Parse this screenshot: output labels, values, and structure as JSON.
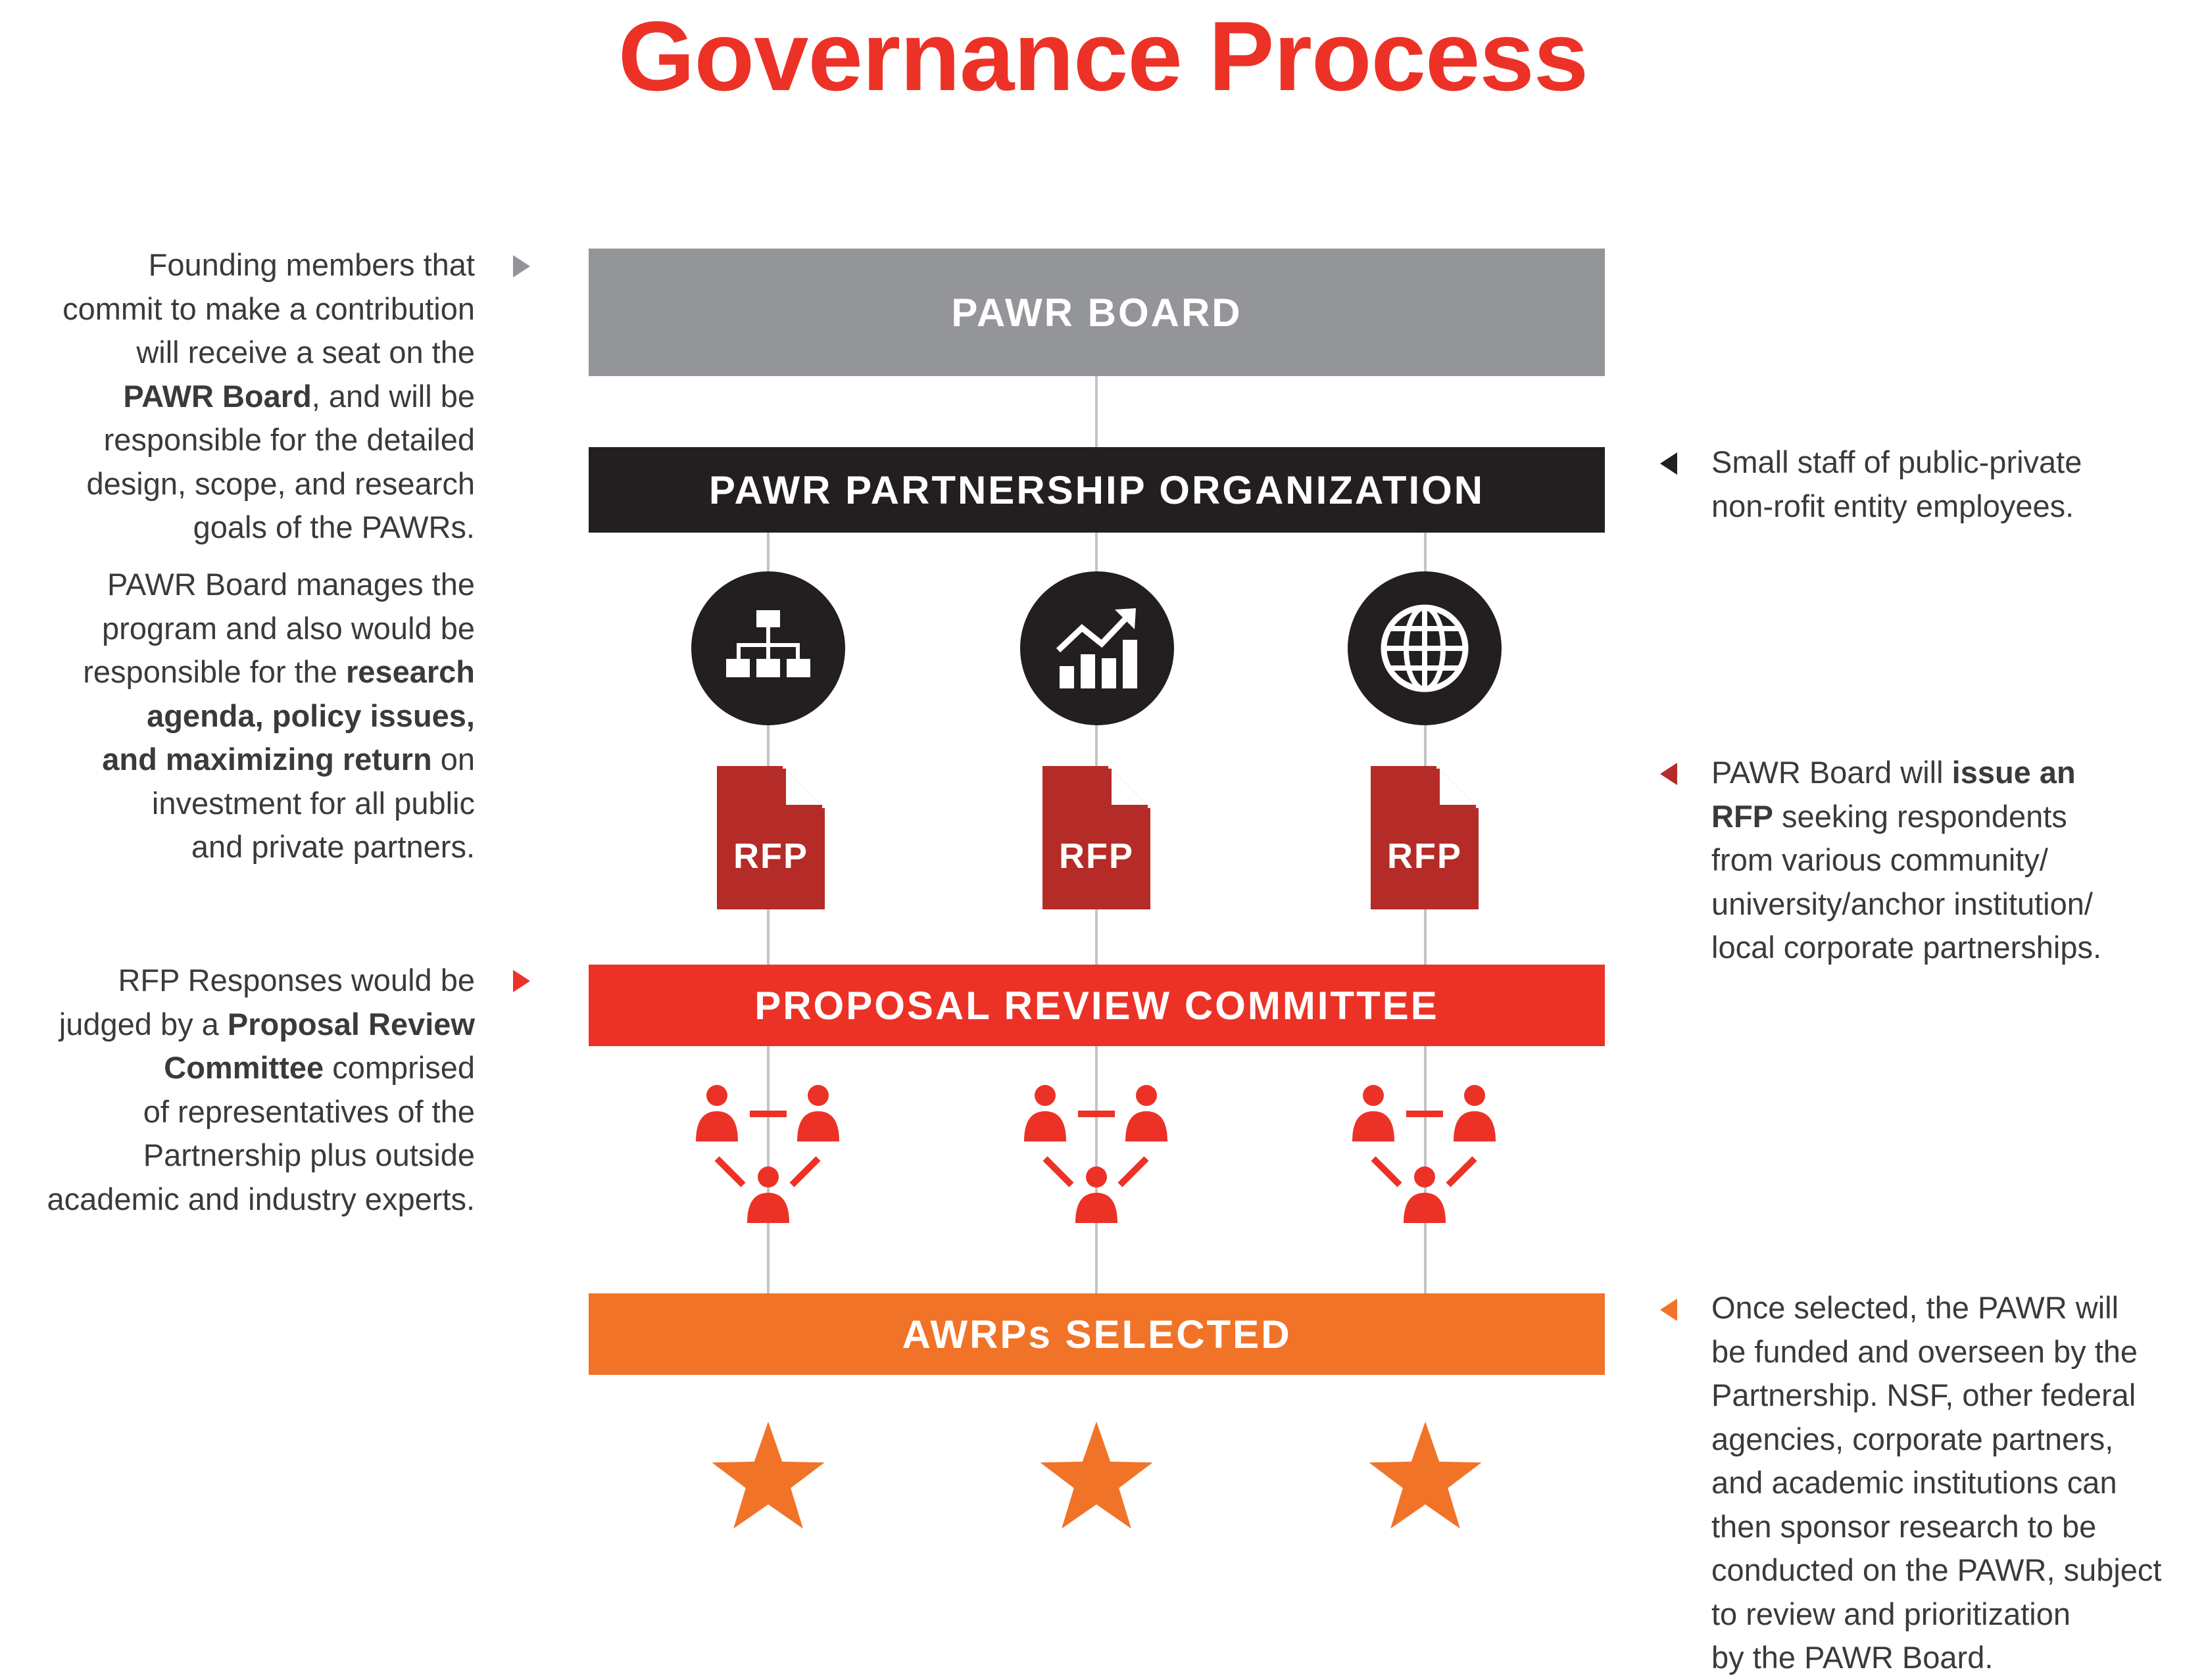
{
  "title": "Governance Process",
  "colors": {
    "title": "#ec3226",
    "board": "#939598",
    "partnership": "#231f20",
    "committee": "#ec3226",
    "selected": "#f17328",
    "rfp_doc": "#b42b27",
    "people": "#ec3226",
    "star": "#f17328",
    "connector": "#c4c4c4"
  },
  "bars": {
    "board": "PAWR BOARD",
    "partnership": "PAWR PARTNERSHIP ORGANIZATION",
    "committee": "PROPOSAL REVIEW COMMITTEE",
    "selected": "AWRPs SELECTED"
  },
  "icons": [
    "org-chart-icon",
    "growth-chart-icon",
    "globe-icon"
  ],
  "rfp_label": "RFP",
  "left_notes": {
    "board": [
      {
        "t": "Founding members that"
      },
      {
        "t": "commit to make a contribution"
      },
      {
        "t": "will receive a seat on the"
      },
      {
        "b": "PAWR Board",
        "t": ", and will be"
      },
      {
        "t": "responsible for the detailed"
      },
      {
        "t": "design, scope, and research"
      },
      {
        "t": "goals of the PAWRs."
      }
    ],
    "manages": [
      {
        "t": "PAWR Board manages the"
      },
      {
        "t": "program and also would be"
      },
      {
        "t": "responsible for the ",
        "b": "research"
      },
      {
        "b": "agenda, policy issues,"
      },
      {
        "b": "and maximizing return",
        "t": " on"
      },
      {
        "t": "investment for all public"
      },
      {
        "t": "and private partners."
      }
    ],
    "committee": [
      {
        "t": "RFP Responses would be"
      },
      {
        "t": "judged by a ",
        "b": "Proposal Review"
      },
      {
        "b": "Committee",
        "t": " comprised"
      },
      {
        "t": "of representatives of the"
      },
      {
        "t": "Partnership plus outside"
      },
      {
        "t": "academic and industry experts."
      }
    ]
  },
  "right_notes": {
    "partnership": [
      {
        "t": "Small staff of public-private"
      },
      {
        "t": "non-rofit entity employees."
      }
    ],
    "rfp": [
      {
        "t": "PAWR Board will ",
        "b": "issue an"
      },
      {
        "b": "RFP",
        "t": " seeking respondents"
      },
      {
        "t": "from various community/"
      },
      {
        "t": "university/anchor institution/"
      },
      {
        "t": "local corporate partnerships."
      }
    ],
    "selected": [
      {
        "t": "Once selected, the PAWR will"
      },
      {
        "t": "be funded and overseen by the"
      },
      {
        "t": "Partnership. NSF, other federal"
      },
      {
        "t": "agencies, corporate partners,"
      },
      {
        "t": "and academic institutions can"
      },
      {
        "t": "then sponsor research to be"
      },
      {
        "t": "conducted on the PAWR, subject"
      },
      {
        "t": "to review and prioritization"
      },
      {
        "t": "by the PAWR Board."
      }
    ]
  }
}
